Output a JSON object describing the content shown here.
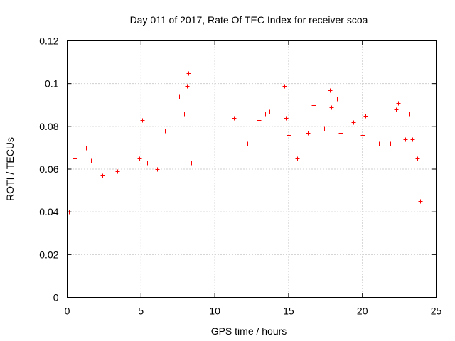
{
  "chart_data": {
    "type": "scatter",
    "title": "Day 011 of 2017, Rate Of TEC Index for receiver scoa",
    "xlabel": "GPS time / hours",
    "ylabel": "ROTI / TECUs",
    "xlim": [
      0,
      25
    ],
    "ylim": [
      0,
      0.12
    ],
    "xticks": [
      0,
      5,
      10,
      15,
      20,
      25
    ],
    "yticks": [
      0,
      0.02,
      0.04,
      0.06,
      0.08,
      0.1,
      0.12
    ],
    "xtick_labels": [
      "0",
      "5",
      "10",
      "15",
      "20",
      "25"
    ],
    "ytick_labels": [
      "0",
      "0.02",
      "0.04",
      "0.06",
      "0.08",
      "0.1",
      "0.12"
    ],
    "grid": true,
    "marker": "+",
    "color": "#ff0000",
    "data_gap_hours": [
      8.6,
      11.1
    ],
    "series": [
      {
        "values": [
          [
            0.1,
            0.04
          ],
          [
            0.5,
            0.065
          ],
          [
            1.3,
            0.07
          ],
          [
            1.6,
            0.064
          ],
          [
            2.4,
            0.057
          ],
          [
            3.4,
            0.059
          ],
          [
            4.5,
            0.056
          ],
          [
            4.9,
            0.065
          ],
          [
            5.1,
            0.083
          ],
          [
            5.4,
            0.063
          ],
          [
            6.1,
            0.06
          ],
          [
            6.6,
            0.078
          ],
          [
            7.0,
            0.072
          ],
          [
            7.6,
            0.094
          ],
          [
            7.9,
            0.086
          ],
          [
            8.1,
            0.099
          ],
          [
            8.2,
            0.105
          ],
          [
            8.4,
            0.063
          ],
          [
            11.3,
            0.084
          ],
          [
            11.7,
            0.087
          ],
          [
            12.2,
            0.072
          ],
          [
            13.0,
            0.083
          ],
          [
            13.4,
            0.086
          ],
          [
            13.7,
            0.087
          ],
          [
            14.2,
            0.071
          ],
          [
            14.7,
            0.099
          ],
          [
            14.8,
            0.084
          ],
          [
            15.0,
            0.076
          ],
          [
            15.6,
            0.065
          ],
          [
            16.3,
            0.077
          ],
          [
            16.7,
            0.09
          ],
          [
            17.4,
            0.079
          ],
          [
            17.8,
            0.097
          ],
          [
            17.9,
            0.089
          ],
          [
            18.3,
            0.093
          ],
          [
            18.5,
            0.077
          ],
          [
            19.4,
            0.082
          ],
          [
            19.7,
            0.086
          ],
          [
            20.0,
            0.076
          ],
          [
            20.2,
            0.085
          ],
          [
            21.1,
            0.072
          ],
          [
            21.9,
            0.072
          ],
          [
            22.3,
            0.088
          ],
          [
            22.4,
            0.091
          ],
          [
            22.9,
            0.074
          ],
          [
            23.2,
            0.086
          ],
          [
            23.4,
            0.074
          ],
          [
            23.7,
            0.065
          ],
          [
            23.9,
            0.045
          ]
        ]
      }
    ]
  }
}
